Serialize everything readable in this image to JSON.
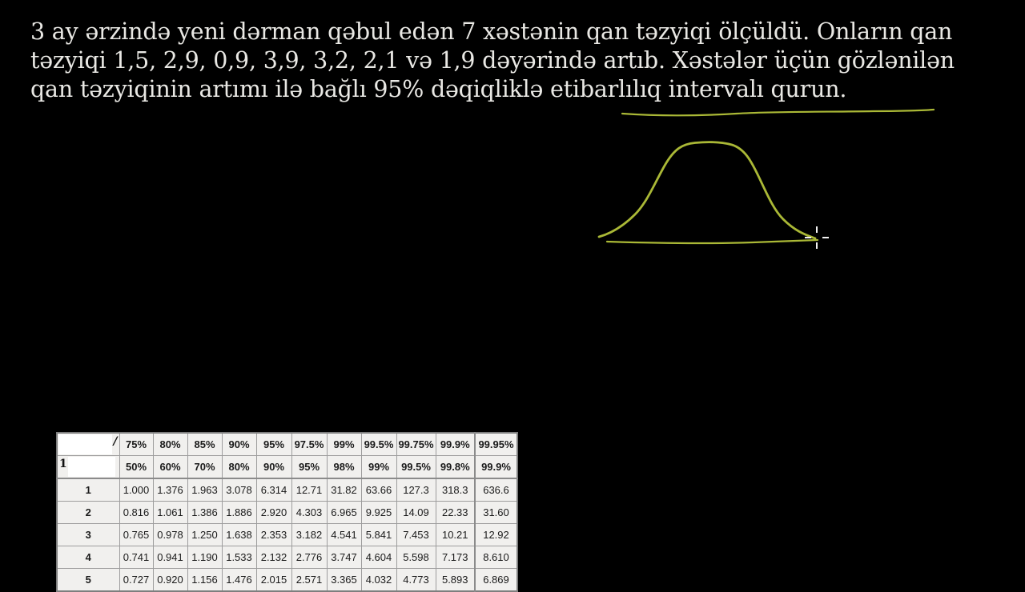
{
  "problem": {
    "lines": [
      "3 ay ərzində yeni dərman qəbul edən 7 xəstənin qan təzyiqi ölçüldü. Onların qan",
      "təzyiqi 1,5, 2,9, 0,9, 3,9, 3,2, 2,1 və 1,9 dəyərində artıb. Xəstələr üçün gözlənilən",
      "qan təzyiqinin artımı ilə bağlı 95% dəqiqliklə etibarlılıq intervalı qurun."
    ],
    "highlighted_phrase": "95% dəqiqliklə etibarlılıq intervalı qurun"
  },
  "annotations": {
    "pen_color": "#aab836",
    "cursor_color": "#f2f2f2",
    "sketch": "hand-drawn normal (bell) distribution curve above a baseline",
    "underline": "wavy underline beneath the confidence-interval phrase"
  },
  "t_table": {
    "corner_fragments": {
      "one_sided": "/",
      "two_sided": "1"
    },
    "one_sided_percents": [
      "75%",
      "80%",
      "85%",
      "90%",
      "95%",
      "97.5%",
      "99%",
      "99.5%",
      "99.75%",
      "99.9%",
      "99.95%"
    ],
    "two_sided_percents": [
      "50%",
      "60%",
      "70%",
      "80%",
      "90%",
      "95%",
      "98%",
      "99%",
      "99.5%",
      "99.8%",
      "99.9%"
    ],
    "rows": [
      {
        "df": "1",
        "values": [
          "1.000",
          "1.376",
          "1.963",
          "3.078",
          "6.314",
          "12.71",
          "31.82",
          "63.66",
          "127.3",
          "318.3",
          "636.6"
        ]
      },
      {
        "df": "2",
        "values": [
          "0.816",
          "1.061",
          "1.386",
          "1.886",
          "2.920",
          "4.303",
          "6.965",
          "9.925",
          "14.09",
          "22.33",
          "31.60"
        ]
      },
      {
        "df": "3",
        "values": [
          "0.765",
          "0.978",
          "1.250",
          "1.638",
          "2.353",
          "3.182",
          "4.541",
          "5.841",
          "7.453",
          "10.21",
          "12.92"
        ]
      },
      {
        "df": "4",
        "values": [
          "0.741",
          "0.941",
          "1.190",
          "1.533",
          "2.132",
          "2.776",
          "3.747",
          "4.604",
          "5.598",
          "7.173",
          "8.610"
        ]
      },
      {
        "df": "5",
        "values": [
          "0.727",
          "0.920",
          "1.156",
          "1.476",
          "2.015",
          "2.571",
          "3.365",
          "4.032",
          "4.773",
          "5.893",
          "6.869"
        ]
      }
    ]
  }
}
